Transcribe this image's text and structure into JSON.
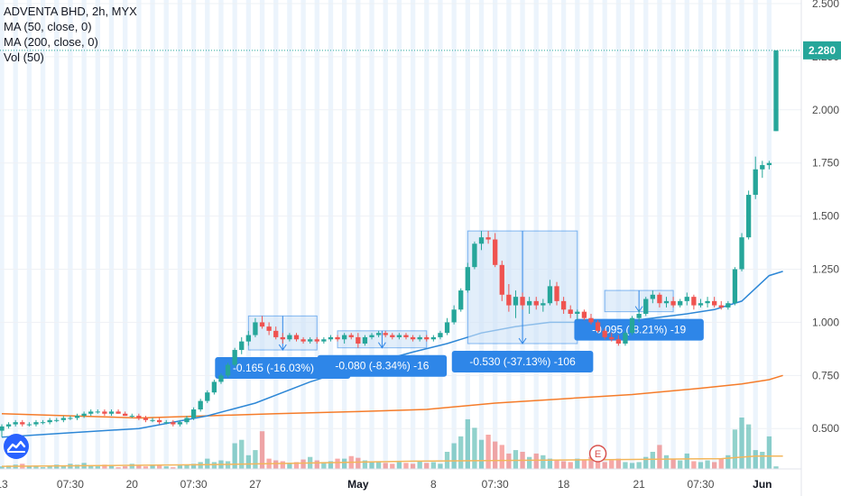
{
  "legend": {
    "title": "ADVENTA BHD, 2h, MYX",
    "ma50": "MA (50, close, 0)",
    "ma200": "MA (200, close, 0)",
    "vol": "Vol (50)"
  },
  "colors": {
    "up": "#26a69a",
    "down": "#ef5350",
    "ma50": "#2d87d6",
    "ma200": "#f57c2a",
    "volMA": "#f3b65b",
    "session_band": "#c9dff5",
    "price_line": "#26a69a",
    "measure_fill": "#cfe3f8",
    "measure_stroke": "#2e86e8",
    "measure_label": "#2e86e8",
    "earnings": "#d9534f"
  },
  "icons": {
    "logo": "tradingview-cloud-icon",
    "earnings": "earnings-e-icon"
  },
  "chart_data": {
    "type": "candlestick",
    "title": "ADVENTA BHD, 2h, MYX",
    "y_ticks": [
      "0.500",
      "0.750",
      "1.000",
      "1.250",
      "1.500",
      "1.750",
      "2.000",
      "2.250",
      "2.500"
    ],
    "ylim": [
      0.31,
      2.5
    ],
    "last_price": "2.280",
    "x_ticks": [
      "13",
      "07:30",
      "20",
      "07:30",
      "27",
      "May",
      "8",
      "07:30",
      "18",
      "21",
      "07:30",
      "Jun"
    ],
    "x_tick_bold": [
      false,
      false,
      false,
      false,
      false,
      true,
      false,
      false,
      false,
      false,
      false,
      true
    ],
    "x_tick_index": [
      0,
      10,
      19,
      28,
      37,
      52,
      63,
      72,
      82,
      93,
      102,
      111
    ],
    "n_bars": 114,
    "grid": true,
    "candles": [
      {
        "o": 0.49,
        "h": 0.52,
        "l": 0.46,
        "c": 0.51
      },
      {
        "o": 0.51,
        "h": 0.53,
        "l": 0.5,
        "c": 0.52
      },
      {
        "o": 0.52,
        "h": 0.54,
        "l": 0.51,
        "c": 0.53
      },
      {
        "o": 0.53,
        "h": 0.54,
        "l": 0.51,
        "c": 0.52
      },
      {
        "o": 0.52,
        "h": 0.53,
        "l": 0.51,
        "c": 0.52
      },
      {
        "o": 0.52,
        "h": 0.54,
        "l": 0.51,
        "c": 0.53
      },
      {
        "o": 0.53,
        "h": 0.54,
        "l": 0.52,
        "c": 0.53
      },
      {
        "o": 0.53,
        "h": 0.55,
        "l": 0.52,
        "c": 0.54
      },
      {
        "o": 0.54,
        "h": 0.55,
        "l": 0.53,
        "c": 0.54
      },
      {
        "o": 0.54,
        "h": 0.56,
        "l": 0.53,
        "c": 0.55
      },
      {
        "o": 0.55,
        "h": 0.56,
        "l": 0.54,
        "c": 0.55
      },
      {
        "o": 0.55,
        "h": 0.57,
        "l": 0.54,
        "c": 0.56
      },
      {
        "o": 0.56,
        "h": 0.58,
        "l": 0.55,
        "c": 0.57
      },
      {
        "o": 0.57,
        "h": 0.59,
        "l": 0.56,
        "c": 0.58
      },
      {
        "o": 0.58,
        "h": 0.59,
        "l": 0.57,
        "c": 0.58
      },
      {
        "o": 0.58,
        "h": 0.59,
        "l": 0.56,
        "c": 0.57
      },
      {
        "o": 0.57,
        "h": 0.59,
        "l": 0.56,
        "c": 0.58
      },
      {
        "o": 0.58,
        "h": 0.59,
        "l": 0.57,
        "c": 0.57
      },
      {
        "o": 0.57,
        "h": 0.58,
        "l": 0.56,
        "c": 0.56
      },
      {
        "o": 0.56,
        "h": 0.57,
        "l": 0.55,
        "c": 0.56
      },
      {
        "o": 0.56,
        "h": 0.57,
        "l": 0.54,
        "c": 0.55
      },
      {
        "o": 0.55,
        "h": 0.56,
        "l": 0.53,
        "c": 0.54
      },
      {
        "o": 0.54,
        "h": 0.55,
        "l": 0.53,
        "c": 0.54
      },
      {
        "o": 0.54,
        "h": 0.55,
        "l": 0.52,
        "c": 0.53
      },
      {
        "o": 0.53,
        "h": 0.54,
        "l": 0.52,
        "c": 0.53
      },
      {
        "o": 0.53,
        "h": 0.54,
        "l": 0.51,
        "c": 0.52
      },
      {
        "o": 0.52,
        "h": 0.54,
        "l": 0.51,
        "c": 0.53
      },
      {
        "o": 0.53,
        "h": 0.56,
        "l": 0.52,
        "c": 0.55
      },
      {
        "o": 0.55,
        "h": 0.6,
        "l": 0.54,
        "c": 0.59
      },
      {
        "o": 0.59,
        "h": 0.64,
        "l": 0.58,
        "c": 0.63
      },
      {
        "o": 0.63,
        "h": 0.68,
        "l": 0.62,
        "c": 0.67
      },
      {
        "o": 0.67,
        "h": 0.73,
        "l": 0.66,
        "c": 0.72
      },
      {
        "o": 0.72,
        "h": 0.76,
        "l": 0.71,
        "c": 0.75
      },
      {
        "o": 0.75,
        "h": 0.81,
        "l": 0.74,
        "c": 0.8
      },
      {
        "o": 0.8,
        "h": 0.88,
        "l": 0.79,
        "c": 0.87
      },
      {
        "o": 0.87,
        "h": 0.93,
        "l": 0.85,
        "c": 0.91
      },
      {
        "o": 0.91,
        "h": 0.96,
        "l": 0.89,
        "c": 0.94
      },
      {
        "o": 0.94,
        "h": 1.02,
        "l": 0.93,
        "c": 1.0
      },
      {
        "o": 1.0,
        "h": 1.03,
        "l": 0.97,
        "c": 0.98
      },
      {
        "o": 0.98,
        "h": 1.0,
        "l": 0.94,
        "c": 0.96
      },
      {
        "o": 0.96,
        "h": 0.98,
        "l": 0.92,
        "c": 0.93
      },
      {
        "o": 0.93,
        "h": 0.95,
        "l": 0.9,
        "c": 0.92
      },
      {
        "o": 0.92,
        "h": 0.95,
        "l": 0.91,
        "c": 0.94
      },
      {
        "o": 0.94,
        "h": 0.95,
        "l": 0.91,
        "c": 0.92
      },
      {
        "o": 0.92,
        "h": 0.93,
        "l": 0.9,
        "c": 0.91
      },
      {
        "o": 0.91,
        "h": 0.93,
        "l": 0.9,
        "c": 0.92
      },
      {
        "o": 0.92,
        "h": 0.93,
        "l": 0.9,
        "c": 0.91
      },
      {
        "o": 0.91,
        "h": 0.93,
        "l": 0.9,
        "c": 0.92
      },
      {
        "o": 0.92,
        "h": 0.94,
        "l": 0.91,
        "c": 0.93
      },
      {
        "o": 0.93,
        "h": 0.94,
        "l": 0.91,
        "c": 0.92
      },
      {
        "o": 0.92,
        "h": 0.95,
        "l": 0.9,
        "c": 0.94
      },
      {
        "o": 0.94,
        "h": 0.95,
        "l": 0.92,
        "c": 0.93
      },
      {
        "o": 0.93,
        "h": 0.95,
        "l": 0.88,
        "c": 0.9
      },
      {
        "o": 0.9,
        "h": 0.94,
        "l": 0.89,
        "c": 0.93
      },
      {
        "o": 0.93,
        "h": 0.95,
        "l": 0.92,
        "c": 0.94
      },
      {
        "o": 0.94,
        "h": 0.96,
        "l": 0.93,
        "c": 0.95
      },
      {
        "o": 0.95,
        "h": 0.96,
        "l": 0.93,
        "c": 0.94
      },
      {
        "o": 0.94,
        "h": 0.95,
        "l": 0.92,
        "c": 0.93
      },
      {
        "o": 0.93,
        "h": 0.95,
        "l": 0.92,
        "c": 0.94
      },
      {
        "o": 0.94,
        "h": 0.95,
        "l": 0.92,
        "c": 0.93
      },
      {
        "o": 0.93,
        "h": 0.94,
        "l": 0.91,
        "c": 0.92
      },
      {
        "o": 0.92,
        "h": 0.94,
        "l": 0.91,
        "c": 0.93
      },
      {
        "o": 0.93,
        "h": 0.94,
        "l": 0.91,
        "c": 0.92
      },
      {
        "o": 0.92,
        "h": 0.94,
        "l": 0.91,
        "c": 0.93
      },
      {
        "o": 0.93,
        "h": 0.96,
        "l": 0.92,
        "c": 0.95
      },
      {
        "o": 0.95,
        "h": 1.02,
        "l": 0.94,
        "c": 1.0
      },
      {
        "o": 1.0,
        "h": 1.08,
        "l": 0.99,
        "c": 1.06
      },
      {
        "o": 1.06,
        "h": 1.16,
        "l": 1.05,
        "c": 1.15
      },
      {
        "o": 1.15,
        "h": 1.28,
        "l": 1.14,
        "c": 1.26
      },
      {
        "o": 1.26,
        "h": 1.38,
        "l": 1.25,
        "c": 1.37
      },
      {
        "o": 1.37,
        "h": 1.43,
        "l": 1.34,
        "c": 1.4
      },
      {
        "o": 1.4,
        "h": 1.43,
        "l": 1.37,
        "c": 1.39
      },
      {
        "o": 1.39,
        "h": 1.42,
        "l": 1.26,
        "c": 1.27
      },
      {
        "o": 1.27,
        "h": 1.29,
        "l": 1.1,
        "c": 1.13
      },
      {
        "o": 1.13,
        "h": 1.18,
        "l": 1.05,
        "c": 1.08
      },
      {
        "o": 1.08,
        "h": 1.15,
        "l": 1.02,
        "c": 1.12
      },
      {
        "o": 1.12,
        "h": 1.14,
        "l": 1.06,
        "c": 1.08
      },
      {
        "o": 1.08,
        "h": 1.12,
        "l": 1.04,
        "c": 1.1
      },
      {
        "o": 1.1,
        "h": 1.12,
        "l": 1.06,
        "c": 1.08
      },
      {
        "o": 1.08,
        "h": 1.11,
        "l": 1.05,
        "c": 1.09
      },
      {
        "o": 1.09,
        "h": 1.2,
        "l": 1.08,
        "c": 1.17
      },
      {
        "o": 1.17,
        "h": 1.19,
        "l": 1.08,
        "c": 1.1
      },
      {
        "o": 1.1,
        "h": 1.12,
        "l": 1.04,
        "c": 1.06
      },
      {
        "o": 1.06,
        "h": 1.08,
        "l": 1.02,
        "c": 1.04
      },
      {
        "o": 1.04,
        "h": 1.06,
        "l": 1.01,
        "c": 1.05
      },
      {
        "o": 1.05,
        "h": 1.06,
        "l": 1.01,
        "c": 1.02
      },
      {
        "o": 1.02,
        "h": 1.04,
        "l": 0.99,
        "c": 1.0
      },
      {
        "o": 1.0,
        "h": 1.01,
        "l": 0.95,
        "c": 0.96
      },
      {
        "o": 0.96,
        "h": 0.97,
        "l": 0.92,
        "c": 0.93
      },
      {
        "o": 0.93,
        "h": 0.95,
        "l": 0.91,
        "c": 0.92
      },
      {
        "o": 0.92,
        "h": 0.94,
        "l": 0.89,
        "c": 0.9
      },
      {
        "o": 0.9,
        "h": 0.96,
        "l": 0.89,
        "c": 0.95
      },
      {
        "o": 0.95,
        "h": 1.03,
        "l": 0.94,
        "c": 1.02
      },
      {
        "o": 1.02,
        "h": 1.06,
        "l": 1.0,
        "c": 1.04
      },
      {
        "o": 1.04,
        "h": 1.12,
        "l": 1.03,
        "c": 1.11
      },
      {
        "o": 1.11,
        "h": 1.15,
        "l": 1.09,
        "c": 1.13
      },
      {
        "o": 1.13,
        "h": 1.14,
        "l": 1.07,
        "c": 1.09
      },
      {
        "o": 1.09,
        "h": 1.12,
        "l": 1.07,
        "c": 1.1
      },
      {
        "o": 1.1,
        "h": 1.12,
        "l": 1.07,
        "c": 1.08
      },
      {
        "o": 1.08,
        "h": 1.11,
        "l": 1.07,
        "c": 1.1
      },
      {
        "o": 1.1,
        "h": 1.14,
        "l": 1.08,
        "c": 1.12
      },
      {
        "o": 1.12,
        "h": 1.13,
        "l": 1.06,
        "c": 1.08
      },
      {
        "o": 1.08,
        "h": 1.11,
        "l": 1.07,
        "c": 1.09
      },
      {
        "o": 1.09,
        "h": 1.12,
        "l": 1.07,
        "c": 1.1
      },
      {
        "o": 1.1,
        "h": 1.12,
        "l": 1.07,
        "c": 1.08
      },
      {
        "o": 1.08,
        "h": 1.1,
        "l": 1.06,
        "c": 1.07
      },
      {
        "o": 1.07,
        "h": 1.1,
        "l": 1.06,
        "c": 1.09
      },
      {
        "o": 1.09,
        "h": 1.26,
        "l": 1.08,
        "c": 1.25
      },
      {
        "o": 1.25,
        "h": 1.42,
        "l": 1.24,
        "c": 1.4
      },
      {
        "o": 1.4,
        "h": 1.62,
        "l": 1.39,
        "c": 1.6
      },
      {
        "o": 1.6,
        "h": 1.78,
        "l": 1.58,
        "c": 1.72
      },
      {
        "o": 1.72,
        "h": 1.76,
        "l": 1.68,
        "c": 1.74
      },
      {
        "o": 1.74,
        "h": 1.76,
        "l": 1.72,
        "c": 1.75
      },
      {
        "o": 1.9,
        "h": 2.28,
        "l": 1.9,
        "c": 2.28
      }
    ],
    "ma50": [
      [
        0,
        0.46
      ],
      [
        10,
        0.48
      ],
      [
        20,
        0.5
      ],
      [
        30,
        0.56
      ],
      [
        37,
        0.62
      ],
      [
        45,
        0.72
      ],
      [
        52,
        0.79
      ],
      [
        60,
        0.86
      ],
      [
        65,
        0.9
      ],
      [
        70,
        0.95
      ],
      [
        75,
        0.98
      ],
      [
        80,
        1.0
      ],
      [
        85,
        1.0
      ],
      [
        90,
        1.0
      ],
      [
        95,
        1.02
      ],
      [
        100,
        1.04
      ],
      [
        104,
        1.06
      ],
      [
        108,
        1.1
      ],
      [
        112,
        1.22
      ],
      [
        114,
        1.24
      ]
    ],
    "ma200": [
      [
        0,
        0.57
      ],
      [
        10,
        0.56
      ],
      [
        20,
        0.55
      ],
      [
        30,
        0.56
      ],
      [
        40,
        0.57
      ],
      [
        52,
        0.58
      ],
      [
        62,
        0.59
      ],
      [
        72,
        0.62
      ],
      [
        82,
        0.64
      ],
      [
        92,
        0.66
      ],
      [
        102,
        0.69
      ],
      [
        108,
        0.71
      ],
      [
        112,
        0.73
      ],
      [
        114,
        0.75
      ]
    ],
    "volume_scale_max": 100,
    "volume": [
      3,
      4,
      5,
      6,
      3,
      4,
      2,
      3,
      5,
      4,
      6,
      5,
      7,
      4,
      3,
      5,
      4,
      2,
      3,
      6,
      4,
      3,
      5,
      4,
      3,
      2,
      4,
      5,
      6,
      8,
      12,
      8,
      10,
      9,
      30,
      34,
      16,
      22,
      44,
      12,
      10,
      9,
      7,
      8,
      11,
      14,
      10,
      8,
      9,
      12,
      12,
      15,
      13,
      10,
      8,
      9,
      7,
      6,
      8,
      7,
      6,
      9,
      7,
      8,
      6,
      20,
      30,
      38,
      58,
      48,
      34,
      40,
      32,
      28,
      18,
      22,
      20,
      14,
      18,
      16,
      12,
      10,
      9,
      8,
      12,
      10,
      14,
      9,
      8,
      10,
      12,
      8,
      7,
      8,
      14,
      20,
      28,
      16,
      12,
      10,
      18,
      9,
      8,
      10,
      8,
      12,
      16,
      46,
      60,
      52,
      22,
      20,
      38,
      3
    ],
    "vol_ma": [
      [
        0,
        3
      ],
      [
        30,
        5
      ],
      [
        60,
        9
      ],
      [
        90,
        11
      ],
      [
        105,
        12
      ],
      [
        110,
        15
      ],
      [
        114,
        15
      ]
    ],
    "measurements": [
      {
        "text": "-0.165 (-16.03%) -33",
        "x0": 36,
        "x1": 46,
        "y_top": 1.03,
        "y_bottom": 0.87
      },
      {
        "text": "-0.080 (-8.34%) -16",
        "x0": 49,
        "x1": 62,
        "y_top": 0.96,
        "y_bottom": 0.88
      },
      {
        "text": "-0.530 (-37.13%) -106",
        "x0": 68,
        "x1": 84,
        "y_top": 1.43,
        "y_bottom": 0.9
      },
      {
        "text": "-0.095 (-8.21%) -19",
        "x0": 88,
        "x1": 98,
        "y_top": 1.15,
        "y_bottom": 1.05
      }
    ],
    "earnings_marker": {
      "label": "E",
      "bar": 87
    }
  }
}
